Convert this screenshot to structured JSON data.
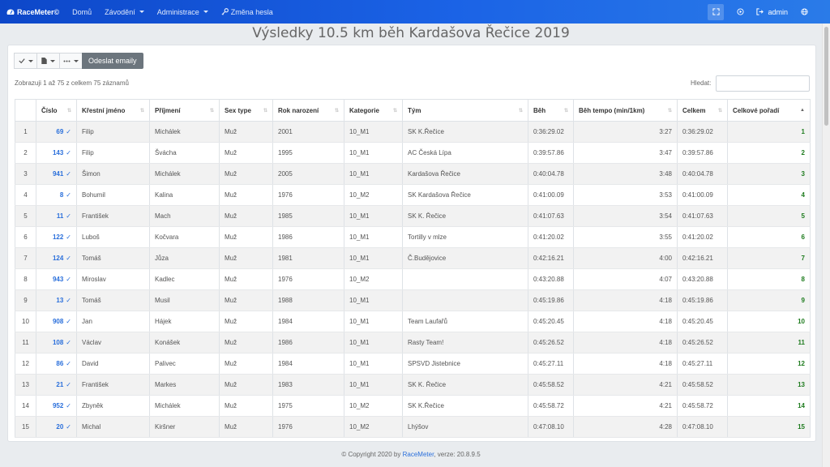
{
  "navbar": {
    "brand": "RaceMeter©",
    "items": [
      {
        "label": "Domů",
        "dropdown": false
      },
      {
        "label": "Závodění",
        "dropdown": true
      },
      {
        "label": "Administrace",
        "dropdown": true
      },
      {
        "label": "Změna hesla",
        "dropdown": false
      }
    ],
    "user": "admin"
  },
  "page": {
    "title": "Výsledky 10.5 km běh Kardašova Řečice 2019"
  },
  "toolbar": {
    "send_emails": "Odeslat emaily"
  },
  "table_info": "Zobrazuji 1 až 75 z celkem 75 záznamů",
  "search": {
    "label": "Hledat:",
    "value": ""
  },
  "table": {
    "headers": [
      "",
      "Číslo",
      "Křestní jméno",
      "Příjmení",
      "Sex type",
      "Rok narození",
      "Kategorie",
      "Tým",
      "Běh",
      "Běh tempo (min/1km)",
      "Celkem",
      "Celkové pořadí"
    ],
    "rows": [
      [
        "1",
        "69",
        "Filip",
        "Michálek",
        "Muž",
        "2001",
        "10_M1",
        "SK K.Řečice",
        "0:36:29.02",
        "3:27",
        "0:36:29.02",
        "1"
      ],
      [
        "2",
        "143",
        "Filip",
        "Švácha",
        "Muž",
        "1995",
        "10_M1",
        "AC Česká Lípa",
        "0:39:57.86",
        "3:47",
        "0:39:57.86",
        "2"
      ],
      [
        "3",
        "941",
        "Šimon",
        "Michálek",
        "Muž",
        "2005",
        "10_M1",
        "Kardašova Řečice",
        "0:40:04.78",
        "3:48",
        "0:40:04.78",
        "3"
      ],
      [
        "4",
        "8",
        "Bohumil",
        "Kalina",
        "Muž",
        "1976",
        "10_M2",
        "SK Kardašova Řečice",
        "0:41:00.09",
        "3:53",
        "0:41:00.09",
        "4"
      ],
      [
        "5",
        "11",
        "František",
        "Mach",
        "Muž",
        "1985",
        "10_M1",
        "SK K. Řečice",
        "0:41:07.63",
        "3:54",
        "0:41:07.63",
        "5"
      ],
      [
        "6",
        "122",
        "Luboš",
        "Kočvara",
        "Muž",
        "1986",
        "10_M1",
        "Tortilly v mlze",
        "0:41:20.02",
        "3:55",
        "0:41:20.02",
        "6"
      ],
      [
        "7",
        "124",
        "Tomáš",
        "Jůza",
        "Muž",
        "1981",
        "10_M1",
        "Č.Budějovice",
        "0:42:16.21",
        "4:00",
        "0:42:16.21",
        "7"
      ],
      [
        "8",
        "943",
        "Miroslav",
        "Kadlec",
        "Muž",
        "1976",
        "10_M2",
        "",
        "0:43:20.88",
        "4:07",
        "0:43:20.88",
        "8"
      ],
      [
        "9",
        "13",
        "Tomáš",
        "Musil",
        "Muž",
        "1988",
        "10_M1",
        "",
        "0:45:19.86",
        "4:18",
        "0:45:19.86",
        "9"
      ],
      [
        "10",
        "908",
        "Jan",
        "Hájek",
        "Muž",
        "1984",
        "10_M1",
        "Team Laufařů",
        "0:45:20.45",
        "4:18",
        "0:45:20.45",
        "10"
      ],
      [
        "11",
        "108",
        "Václav",
        "Konášek",
        "Muž",
        "1986",
        "10_M1",
        "Rasty Team!",
        "0:45:26.52",
        "4:18",
        "0:45:26.52",
        "11"
      ],
      [
        "12",
        "86",
        "David",
        "Palivec",
        "Muž",
        "1984",
        "10_M1",
        "SPSVD Jistebnice",
        "0:45:27.11",
        "4:18",
        "0:45:27.11",
        "12"
      ],
      [
        "13",
        "21",
        "František",
        "Markes",
        "Muž",
        "1983",
        "10_M1",
        "SK K. Řečice",
        "0:45:58.52",
        "4:21",
        "0:45:58.52",
        "13"
      ],
      [
        "14",
        "952",
        "Zbyněk",
        "Michálek",
        "Muž",
        "1975",
        "10_M2",
        "SK K.Řečice",
        "0:45:58.72",
        "4:21",
        "0:45:58.72",
        "14"
      ],
      [
        "15",
        "20",
        "Michal",
        "Kiršner",
        "Muž",
        "1976",
        "10_M2",
        "Lhýšov",
        "0:47:08.10",
        "4:28",
        "0:47:08.10",
        "15"
      ]
    ]
  },
  "footer": {
    "prefix": "© Copyright 2020 by ",
    "link": "RaceMeter",
    "suffix": ", verze: 20.8.9.5"
  },
  "colors": {
    "navbar": "#1b63e6",
    "link": "#2a6fdb",
    "rank": "#1e7b1e",
    "odd_row": "#f2f2f2"
  },
  "icons": [
    "speedometer-icon",
    "key-icon",
    "fullscreen-icon",
    "play-icon",
    "logout-icon",
    "globe-icon",
    "check-icon",
    "file-icon",
    "more-icon",
    "sort-icon"
  ]
}
